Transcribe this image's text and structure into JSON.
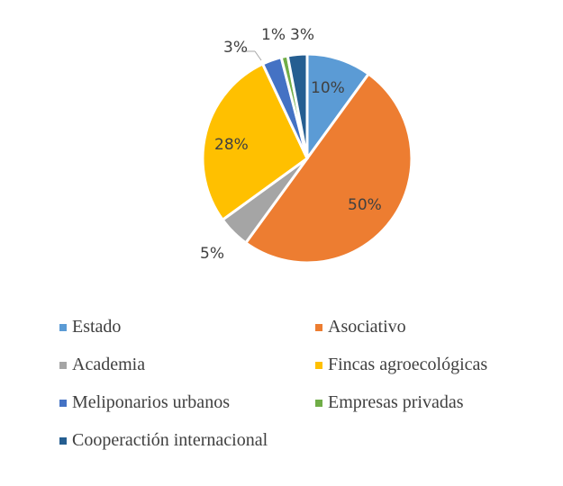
{
  "chart_data": {
    "type": "pie",
    "title": "",
    "categories": [
      "Estado",
      "Asociativo",
      "Academia",
      "Fincas agroecológicas",
      "Meliponarios urbanos",
      "Empresas privadas",
      "Cooperactión internacional"
    ],
    "values": [
      10,
      50,
      5,
      28,
      3,
      1,
      3
    ],
    "labels": [
      "10%",
      "50%",
      "5%",
      "28%",
      "3%",
      "1%",
      "3%"
    ],
    "colors": [
      "#5B9BD5",
      "#ED7D31",
      "#A5A5A5",
      "#FFC000",
      "#4472C4",
      "#70AD47",
      "#255E91"
    ],
    "start_angle": "12 o'clock, clockwise",
    "legend_position": "bottom"
  },
  "legend": [
    {
      "label": "Estado",
      "color": "#5B9BD5"
    },
    {
      "label": "Asociativo",
      "color": "#ED7D31"
    },
    {
      "label": "Academia",
      "color": "#A5A5A5"
    },
    {
      "label": "Fincas agroecológicas",
      "color": "#FFC000"
    },
    {
      "label": "Meliponarios urbanos",
      "color": "#4472C4"
    },
    {
      "label": "Empresas privadas",
      "color": "#70AD47"
    },
    {
      "label": "Cooperactión internacional",
      "color": "#255E91"
    }
  ]
}
